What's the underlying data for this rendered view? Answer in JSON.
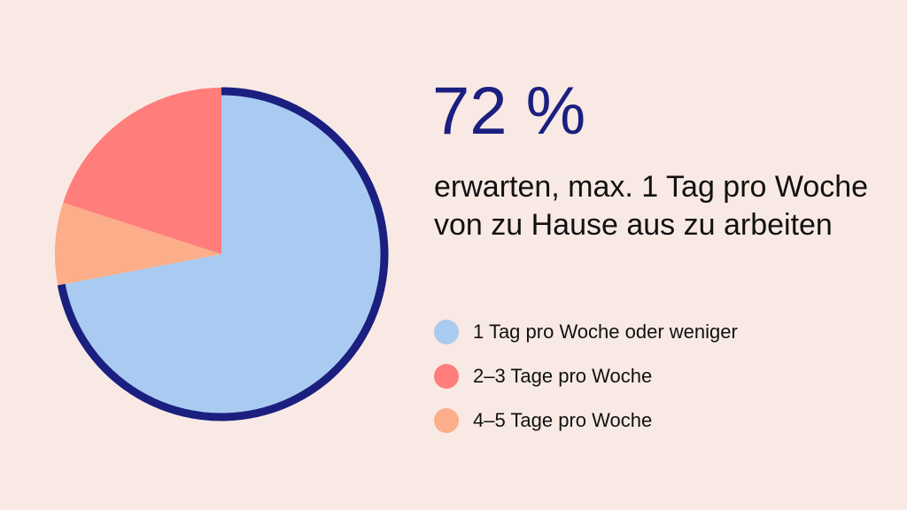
{
  "chart_data": {
    "type": "pie",
    "title": "72 %",
    "subtitle": "erwarten, max. 1 Tag pro Woche von zu Hause aus zu arbeiten",
    "legend_placement": "right",
    "slices": [
      {
        "label": "1 Tag pro Woche oder weniger",
        "value": 72,
        "color": "#aacbf1"
      },
      {
        "label": "4–5 Tage pro Woche",
        "value": 8,
        "color": "#fbae89"
      },
      {
        "label": "2–3 Tage pro Woche",
        "value": 20,
        "color": "#ff7d7b"
      }
    ],
    "legend": [
      {
        "label": "1 Tag pro Woche oder weniger",
        "color": "#aacbf1"
      },
      {
        "label": "2–3 Tage pro Woche",
        "color": "#ff7d7b"
      },
      {
        "label": "4–5 Tage pro Woche",
        "color": "#fbae89"
      }
    ],
    "highlight_outline_color": "#1a1f80"
  }
}
